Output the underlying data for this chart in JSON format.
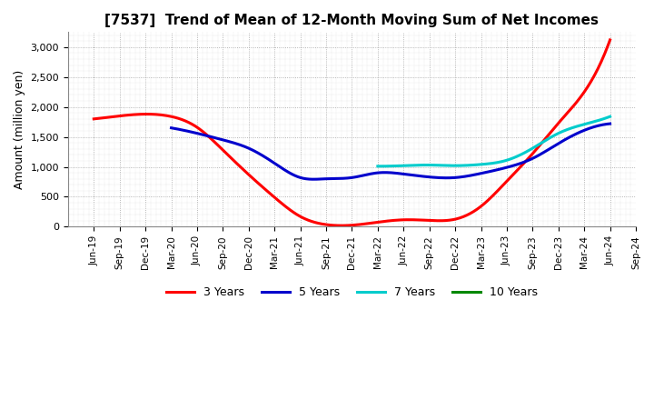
{
  "title": "[7537]  Trend of Mean of 12-Month Moving Sum of Net Incomes",
  "ylabel": "Amount (million yen)",
  "background_color": "#ffffff",
  "plot_bg_color": "#ffffff",
  "grid_color": "#999999",
  "x_labels": [
    "Jun-19",
    "Sep-19",
    "Dec-19",
    "Mar-20",
    "Jun-20",
    "Sep-20",
    "Dec-20",
    "Mar-21",
    "Jun-21",
    "Sep-21",
    "Dec-21",
    "Mar-22",
    "Jun-22",
    "Sep-22",
    "Dec-22",
    "Mar-23",
    "Jun-23",
    "Sep-23",
    "Dec-23",
    "Mar-24",
    "Jun-24",
    "Sep-24"
  ],
  "ylim": [
    0,
    3250
  ],
  "yticks": [
    0,
    500,
    1000,
    1500,
    2000,
    2500,
    3000
  ],
  "series": {
    "3 Years": {
      "color": "#ff0000",
      "values": [
        1800,
        1850,
        1880,
        1840,
        1660,
        1280,
        870,
        490,
        170,
        35,
        25,
        75,
        115,
        105,
        125,
        340,
        760,
        1220,
        1730,
        2250,
        3120,
        null
      ]
    },
    "5 Years": {
      "color": "#0000cc",
      "values": [
        null,
        null,
        null,
        1650,
        1560,
        1450,
        1310,
        1060,
        820,
        800,
        820,
        900,
        880,
        830,
        820,
        890,
        990,
        1140,
        1390,
        1610,
        1720,
        null
      ]
    },
    "7 Years": {
      "color": "#00cccc",
      "values": [
        null,
        null,
        null,
        null,
        null,
        null,
        null,
        null,
        null,
        null,
        null,
        1010,
        1020,
        1030,
        1020,
        1040,
        1110,
        1310,
        1560,
        1710,
        1840,
        null
      ]
    },
    "10 Years": {
      "color": "#008800",
      "values": [
        null,
        null,
        null,
        null,
        null,
        null,
        null,
        null,
        null,
        null,
        null,
        null,
        null,
        null,
        null,
        null,
        null,
        null,
        null,
        null,
        null,
        null
      ]
    }
  },
  "legend_entries": [
    "3 Years",
    "5 Years",
    "7 Years",
    "10 Years"
  ],
  "legend_colors": [
    "#ff0000",
    "#0000cc",
    "#00cccc",
    "#008800"
  ]
}
